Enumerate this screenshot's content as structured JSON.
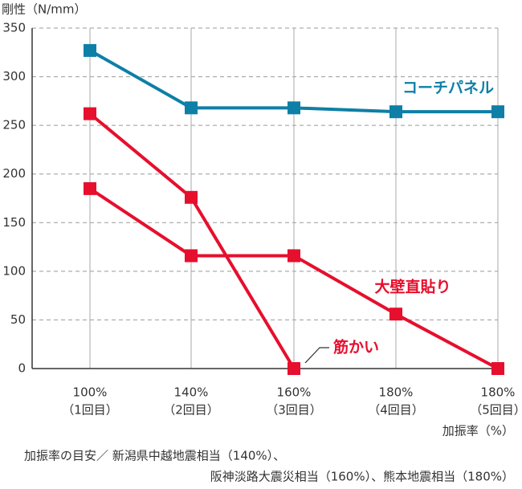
{
  "chart_data": {
    "type": "line",
    "y_label": "剛性（N/mm）",
    "x_label": "加振率（%）",
    "categories": [
      [
        "100%",
        "（1回目）"
      ],
      [
        "140%",
        "（2回目）"
      ],
      [
        "160%",
        "（3回目）"
      ],
      [
        "180%",
        "（4回目）"
      ],
      [
        "180%",
        "（5回目）"
      ]
    ],
    "series": [
      {
        "name": "コーチパネル",
        "color": "#0e7fa6",
        "values": [
          327,
          268,
          268,
          264,
          264
        ]
      },
      {
        "name": "大壁直貼り",
        "color": "#e60f2d",
        "values": [
          185,
          116,
          116,
          56,
          0
        ]
      },
      {
        "name": "筋かい",
        "color": "#e60f2d",
        "values": [
          262,
          176,
          0,
          null,
          null
        ]
      }
    ],
    "ylim": [
      0,
      350
    ],
    "yticks": [
      0,
      50,
      100,
      150,
      200,
      250,
      300,
      350
    ],
    "grid": true,
    "notes": [
      "加振率の目安／ 新潟県中越地震相当（140%）、",
      "阪神淡路大震災相当（160%）、熊本地震相当（180%）"
    ]
  }
}
